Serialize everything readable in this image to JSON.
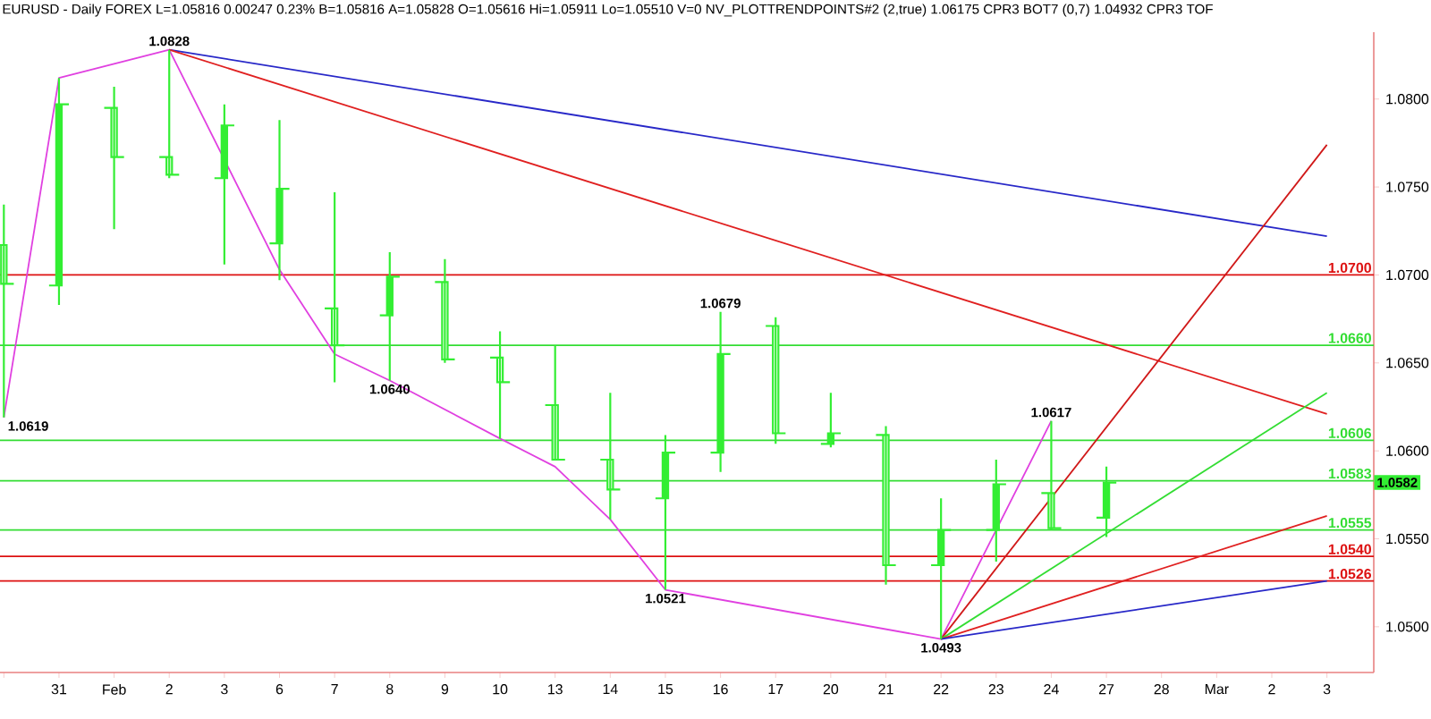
{
  "chart_data": {
    "type": "candlestick",
    "title": "EURUSD - Daily  FOREX  L=1.05816  0.00247  0.23%  B=1.05816  A=1.05828  O=1.05616  Hi=1.05911  Lo=1.05510  V=0  NV_PLOTTRENDPOINTS#2 (2,true)  1.06175  CPR3 BOT7 (0,7)  1.04932  CPR3 TOF",
    "categories": [
      null,
      "31",
      "Feb",
      "2",
      "3",
      "6",
      "7",
      "8",
      "9",
      "10",
      "13",
      "14",
      "15",
      "16",
      "17",
      "20",
      "21",
      "22",
      "23",
      "24",
      "27",
      "28",
      "Mar",
      "2",
      "3"
    ],
    "color": "#33ee33",
    "ohlc": [
      [
        1.0717,
        1.074,
        1.0619,
        1.0695
      ],
      [
        1.0694,
        1.0812,
        1.0683,
        1.0797
      ],
      [
        1.0795,
        1.0807,
        1.0726,
        1.0767
      ],
      [
        1.0767,
        1.0828,
        1.0755,
        1.0757
      ],
      [
        1.0755,
        1.0797,
        1.0706,
        1.0785
      ],
      [
        1.0718,
        1.0788,
        1.0697,
        1.0749
      ],
      [
        1.0681,
        1.0747,
        1.0639,
        1.066
      ],
      [
        1.0677,
        1.0713,
        1.064,
        1.0699
      ],
      [
        1.0696,
        1.0709,
        1.065,
        1.0652
      ],
      [
        1.0653,
        1.0668,
        1.0607,
        1.0639
      ],
      [
        1.0626,
        1.066,
        1.0595,
        1.0595
      ],
      [
        1.0595,
        1.0633,
        1.0561,
        1.0578
      ],
      [
        1.0573,
        1.0609,
        1.0521,
        1.0599
      ],
      [
        1.0599,
        1.0679,
        1.0588,
        1.0655
      ],
      [
        1.0671,
        1.0676,
        1.0604,
        1.061
      ],
      [
        1.0604,
        1.0633,
        1.0602,
        1.061
      ],
      [
        1.0609,
        1.0614,
        1.0524,
        1.0535
      ],
      [
        1.0535,
        1.0573,
        1.0493,
        1.0555
      ],
      [
        1.0555,
        1.0595,
        1.0537,
        1.0581
      ],
      [
        1.0576,
        1.0617,
        1.0555,
        1.0556
      ],
      [
        1.0562,
        1.0591,
        1.0551,
        1.0582
      ],
      null,
      null,
      null,
      null
    ],
    "series": [
      {
        "type": "line",
        "color": "#e040e0",
        "values": [
          1.0619,
          1.0812,
          null,
          1.0828,
          null,
          1.0703,
          1.0655,
          1.064,
          null,
          1.0607,
          1.0591,
          1.0561,
          1.0521,
          null,
          null,
          null,
          null,
          1.0493,
          null,
          1.0617,
          null,
          null,
          null,
          null,
          null
        ]
      },
      {
        "type": "line",
        "color": "#2828c8",
        "values": [
          null,
          null,
          null,
          1.0828,
          null,
          null,
          null,
          null,
          null,
          null,
          null,
          null,
          null,
          null,
          null,
          null,
          null,
          null,
          null,
          null,
          null,
          null,
          null,
          null,
          1.0722
        ]
      },
      {
        "type": "line",
        "color": "#e02020",
        "values": [
          null,
          null,
          null,
          1.0828,
          null,
          null,
          null,
          null,
          null,
          null,
          null,
          null,
          null,
          null,
          null,
          null,
          null,
          null,
          null,
          null,
          null,
          null,
          null,
          null,
          1.0621
        ]
      },
      {
        "type": "line",
        "color": "#d01818",
        "values": [
          null,
          null,
          null,
          null,
          null,
          null,
          null,
          null,
          null,
          null,
          null,
          null,
          null,
          null,
          null,
          null,
          null,
          1.0493,
          null,
          null,
          null,
          null,
          null,
          null,
          1.0774
        ]
      },
      {
        "type": "line",
        "color": "#33dd33",
        "values": [
          null,
          null,
          null,
          null,
          null,
          null,
          null,
          null,
          null,
          null,
          null,
          null,
          null,
          null,
          null,
          null,
          null,
          1.0493,
          null,
          null,
          null,
          null,
          null,
          null,
          1.0633
        ]
      },
      {
        "type": "line",
        "color": "#e02020",
        "values": [
          null,
          null,
          null,
          null,
          null,
          null,
          null,
          null,
          null,
          null,
          null,
          null,
          null,
          null,
          null,
          null,
          null,
          1.0493,
          null,
          null,
          null,
          null,
          null,
          null,
          1.0563
        ]
      },
      {
        "type": "line",
        "color": "#2828c8",
        "values": [
          null,
          null,
          null,
          null,
          null,
          null,
          null,
          null,
          null,
          null,
          null,
          null,
          null,
          null,
          null,
          null,
          null,
          1.0493,
          null,
          null,
          null,
          null,
          null,
          null,
          1.0526
        ]
      }
    ],
    "ref_lines": [
      {
        "axis": "y",
        "value": 1.07,
        "label": "1.0700",
        "color": "#dd1111"
      },
      {
        "axis": "y",
        "value": 1.066,
        "label": "1.0660",
        "color": "#33dd33"
      },
      {
        "axis": "y",
        "value": 1.0606,
        "label": "1.0606",
        "color": "#33dd33"
      },
      {
        "axis": "y",
        "value": 1.0583,
        "label": "1.0583",
        "color": "#33dd33"
      },
      {
        "axis": "y",
        "value": 1.0555,
        "label": "1.0555",
        "color": "#33dd33"
      },
      {
        "axis": "y",
        "value": 1.054,
        "label": "1.0540",
        "color": "#dd1111"
      },
      {
        "axis": "y",
        "value": 1.0526,
        "label": "1.0526",
        "color": "#dd1111"
      }
    ],
    "annotations": [
      {
        "text": "1.0828",
        "x": "2",
        "y": 1.0828
      },
      "1.0619",
      {
        "text": "1.0640",
        "x": "8",
        "y": 1.064
      },
      {
        "text": "1.0521",
        "x": "15",
        "y": 1.0521
      },
      {
        "text": "1.0679",
        "x": "16",
        "y": 1.0679
      },
      {
        "text": "1.0493",
        "x": "22",
        "y": 1.0493
      },
      {
        "text": "1.0617",
        "x": "24",
        "y": 1.0617
      },
      {
        "text": "1.0582",
        "y": 1.0582
      }
    ],
    "ylim": [
      1.0474,
      1.0838
    ],
    "yticks": [
      {
        "value": 1.05,
        "label": "1.0500"
      },
      {
        "value": 1.055,
        "label": "1.0550"
      },
      {
        "value": 1.06,
        "label": "1.0600"
      },
      {
        "value": 1.065,
        "label": "1.0650"
      },
      {
        "value": 1.07,
        "label": "1.0700"
      },
      {
        "value": 1.075,
        "label": "1.0750"
      },
      {
        "value": 1.08,
        "label": "1.0800"
      }
    ]
  }
}
